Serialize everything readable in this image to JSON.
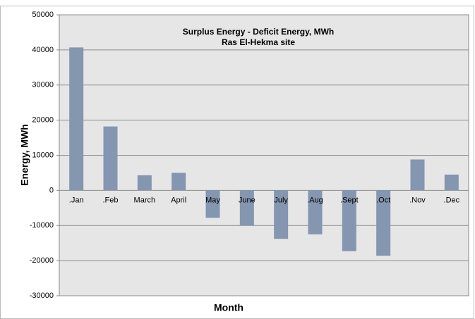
{
  "chart_data": {
    "type": "bar",
    "title": "Surplus Energy - Deficit Energy, MWh",
    "subtitle": "Ras El-Hekma  site",
    "y_label": "Energy, MWh",
    "x_label": "Month",
    "categories": [
      ".Jan",
      ".Feb",
      "March",
      "April",
      "May",
      "June",
      "July",
      ".Aug",
      ".Sept",
      ".Oct",
      ".Nov",
      ".Dec"
    ],
    "values": [
      40700,
      18200,
      4300,
      5000,
      -7800,
      -10000,
      -13800,
      -12500,
      -17300,
      -18600,
      8800,
      4500
    ],
    "color": "#8496b0",
    "ylim": [
      -30000,
      50000
    ],
    "yticks": [
      -30000,
      -20000,
      -10000,
      0,
      10000,
      20000,
      30000,
      40000,
      50000
    ],
    "grid": true
  }
}
